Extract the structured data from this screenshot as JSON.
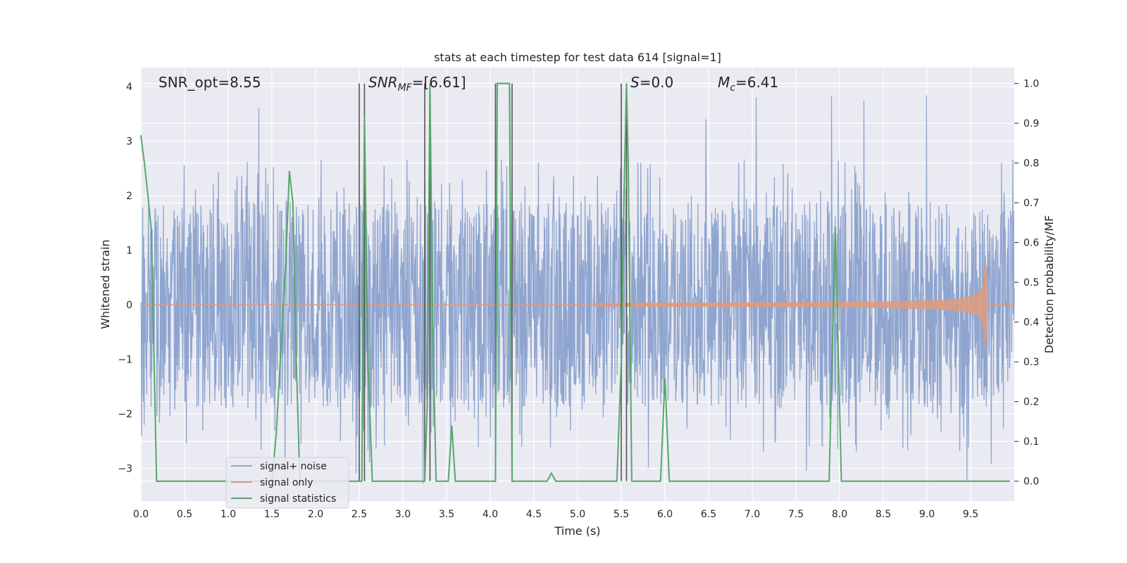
{
  "chart_data": {
    "type": "line",
    "title": "stats at each timestep for test data 614 [signal=1]",
    "xlabel": "Time (s)",
    "ylabel_left": "Whitened strain",
    "ylabel_right": "Detection probability/MF",
    "xlim": [
      0,
      10
    ],
    "ylim_left": [
      -3.6,
      4.35
    ],
    "ylim_right": [
      -0.05,
      1.04
    ],
    "x_ticks": [
      "0.0",
      "0.5",
      "1.0",
      "1.5",
      "2.0",
      "2.5",
      "3.0",
      "3.5",
      "4.0",
      "4.5",
      "5.0",
      "5.5",
      "6.0",
      "6.5",
      "7.0",
      "7.5",
      "8.0",
      "8.5",
      "9.0",
      "9.5"
    ],
    "y_ticks_left": [
      "−3",
      "−2",
      "−1",
      "0",
      "1",
      "2",
      "3",
      "4"
    ],
    "y_ticks_right": [
      "0.0",
      "0.1",
      "0.2",
      "0.3",
      "0.4",
      "0.5",
      "0.6",
      "0.7",
      "0.8",
      "0.9",
      "1.0"
    ],
    "grid": true,
    "legend_position": "lower-left",
    "annotations": {
      "snr_opt": "SNR_opt=8.55",
      "snr_mf_sym": "SNR",
      "snr_mf_sub": "MF",
      "snr_mf_val": "=[6.61]",
      "s_sym": "S",
      "s_val": "=0.0",
      "mc_sym": "M",
      "mc_sub": "c",
      "mc_val": "=6.41"
    },
    "vlines_x": [
      2.5,
      2.56,
      3.25,
      3.31,
      4.06,
      4.25,
      5.5,
      5.56
    ],
    "series": [
      {
        "name": "signal+ noise",
        "color": "#8fa5cf",
        "axis": "left",
        "kind": "noise",
        "typical_range": [
          -1.9,
          1.9
        ],
        "peak_max": 4.0,
        "peak_min": -3.3
      },
      {
        "name": "signal only",
        "color": "#dd9b80",
        "axis": "left",
        "kind": "chirp",
        "start": 5.2,
        "merger": 9.67,
        "peak_amplitude": 1.0,
        "end": 9.7
      },
      {
        "name": "signal statistics",
        "color": "#55a868",
        "axis": "right",
        "kind": "line",
        "x": [
          0.0,
          0.04,
          0.08,
          0.12,
          0.18,
          0.25,
          0.6,
          1.0,
          1.4,
          1.5,
          1.55,
          1.62,
          1.66,
          1.7,
          1.74,
          1.78,
          1.82,
          1.9,
          2.0,
          2.3,
          2.5,
          2.53,
          2.56,
          2.6,
          2.65,
          2.8,
          3.0,
          3.2,
          3.25,
          3.28,
          3.31,
          3.34,
          3.38,
          3.42,
          3.48,
          3.52,
          3.56,
          3.6,
          3.65,
          3.8,
          4.0,
          4.06,
          4.08,
          4.1,
          4.12,
          4.2,
          4.22,
          4.25,
          4.28,
          4.4,
          4.5,
          4.6,
          4.65,
          4.7,
          4.75,
          4.8,
          5.0,
          5.3,
          5.45,
          5.5,
          5.53,
          5.56,
          5.58,
          5.62,
          5.7,
          5.85,
          5.95,
          6.0,
          6.05,
          6.1,
          6.2,
          6.5,
          7.0,
          7.5,
          7.8,
          7.88,
          7.95,
          8.02,
          8.1,
          9.0,
          9.5,
          9.95
        ],
        "y": [
          0.87,
          0.8,
          0.72,
          0.63,
          0.0,
          0.0,
          0.0,
          0.0,
          0.0,
          0.0,
          0.12,
          0.4,
          0.55,
          0.78,
          0.7,
          0.3,
          0.0,
          0.0,
          0.0,
          0.0,
          0.0,
          0.0,
          0.92,
          0.3,
          0.0,
          0.0,
          0.0,
          0.0,
          0.0,
          0.2,
          1.0,
          0.4,
          0.0,
          0.0,
          0.0,
          0.0,
          0.14,
          0.0,
          0.0,
          0.0,
          0.0,
          0.0,
          1.0,
          1.0,
          1.0,
          1.0,
          1.0,
          0.0,
          0.0,
          0.0,
          0.0,
          0.0,
          0.0,
          0.02,
          0.0,
          0.0,
          0.0,
          0.0,
          0.0,
          0.3,
          0.7,
          1.0,
          0.8,
          0.0,
          0.0,
          0.0,
          0.0,
          0.26,
          0.0,
          0.0,
          0.0,
          0.0,
          0.0,
          0.0,
          0.0,
          0.0,
          0.64,
          0.0,
          0.0,
          0.0,
          0.0,
          0.0
        ]
      }
    ]
  }
}
